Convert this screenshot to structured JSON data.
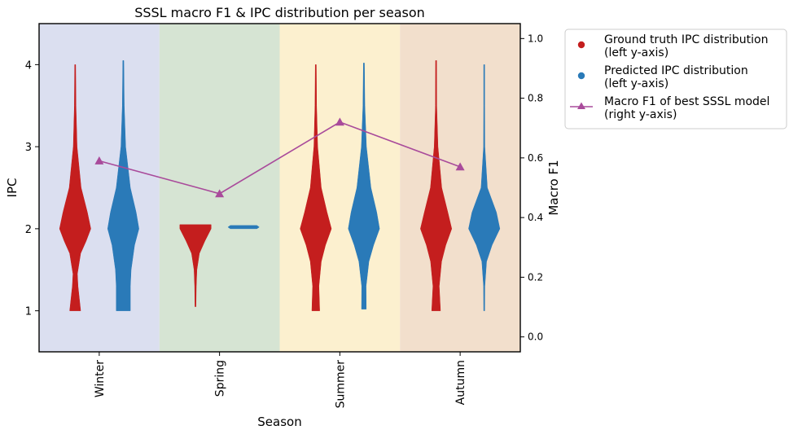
{
  "chart_data": {
    "type": "violin",
    "title": "SSSL macro F1 & IPC distribution per season",
    "xlabel": "Season",
    "ylabel": "IPC",
    "y2label": "Macro F1",
    "categories": [
      "Winter",
      "Spring",
      "Summer",
      "Autumn"
    ],
    "ylim": [
      0.5,
      4.5
    ],
    "y2lim": [
      -0.05,
      1.05
    ],
    "yticks": [
      "1",
      "2",
      "3",
      "4"
    ],
    "y2ticks": [
      "0.0",
      "0.2",
      "0.4",
      "0.6",
      "0.8",
      "1.0"
    ],
    "background_colors": [
      "#dbdff0",
      "#d6e4d3",
      "#fcf0cf",
      "#f2dfcc"
    ],
    "series": [
      {
        "name": "Ground truth IPC distribution\n(left y-axis)",
        "color": "#c41e1e",
        "axis": "left",
        "violins": [
          {
            "min": 1.0,
            "max": 4.0,
            "profile": [
              [
                1.0,
                0.35
              ],
              [
                1.3,
                0.18
              ],
              [
                1.45,
                0.14
              ],
              [
                1.7,
                0.35
              ],
              [
                1.85,
                0.7
              ],
              [
                2.0,
                1.0
              ],
              [
                2.2,
                0.78
              ],
              [
                2.5,
                0.38
              ],
              [
                3.0,
                0.12
              ],
              [
                3.5,
                0.05
              ],
              [
                4.0,
                0.02
              ]
            ]
          },
          {
            "min": 1.05,
            "max": 2.05,
            "profile": [
              [
                1.05,
                0.02
              ],
              [
                1.3,
                0.05
              ],
              [
                1.5,
                0.09
              ],
              [
                1.7,
                0.25
              ],
              [
                1.85,
                0.6
              ],
              [
                2.0,
                1.0
              ],
              [
                2.05,
                1.0
              ]
            ]
          },
          {
            "min": 1.0,
            "max": 4.0,
            "profile": [
              [
                1.0,
                0.25
              ],
              [
                1.3,
                0.2
              ],
              [
                1.6,
                0.35
              ],
              [
                1.8,
                0.62
              ],
              [
                2.0,
                1.0
              ],
              [
                2.2,
                0.72
              ],
              [
                2.5,
                0.35
              ],
              [
                3.0,
                0.12
              ],
              [
                3.5,
                0.05
              ],
              [
                4.0,
                0.02
              ]
            ]
          },
          {
            "min": 1.0,
            "max": 4.05,
            "profile": [
              [
                1.0,
                0.28
              ],
              [
                1.3,
                0.2
              ],
              [
                1.6,
                0.35
              ],
              [
                1.8,
                0.62
              ],
              [
                2.0,
                1.0
              ],
              [
                2.2,
                0.75
              ],
              [
                2.5,
                0.36
              ],
              [
                3.0,
                0.12
              ],
              [
                3.5,
                0.04
              ],
              [
                4.05,
                0.02
              ]
            ]
          }
        ]
      },
      {
        "name": "Predicted IPC distribution\n(left y-axis)",
        "color": "#2a7ab8",
        "axis": "left",
        "violins": [
          {
            "min": 1.0,
            "max": 4.05,
            "profile": [
              [
                1.0,
                0.45
              ],
              [
                1.3,
                0.45
              ],
              [
                1.5,
                0.5
              ],
              [
                1.8,
                0.72
              ],
              [
                2.0,
                1.0
              ],
              [
                2.2,
                0.82
              ],
              [
                2.5,
                0.45
              ],
              [
                3.0,
                0.15
              ],
              [
                3.5,
                0.06
              ],
              [
                4.05,
                0.03
              ]
            ]
          },
          {
            "min": 2.0,
            "max": 2.04,
            "profile": [
              [
                2.0,
                0.85
              ],
              [
                2.02,
                1.0
              ],
              [
                2.04,
                0.85
              ]
            ]
          },
          {
            "min": 1.02,
            "max": 4.02,
            "profile": [
              [
                1.02,
                0.15
              ],
              [
                1.3,
                0.14
              ],
              [
                1.6,
                0.32
              ],
              [
                1.8,
                0.62
              ],
              [
                2.0,
                1.0
              ],
              [
                2.2,
                0.82
              ],
              [
                2.5,
                0.45
              ],
              [
                3.0,
                0.16
              ],
              [
                3.5,
                0.06
              ],
              [
                4.02,
                0.02
              ]
            ]
          },
          {
            "min": 1.0,
            "max": 4.0,
            "profile": [
              [
                1.0,
                0.02
              ],
              [
                1.3,
                0.04
              ],
              [
                1.6,
                0.15
              ],
              [
                1.8,
                0.5
              ],
              [
                2.0,
                1.0
              ],
              [
                2.2,
                0.78
              ],
              [
                2.5,
                0.2
              ],
              [
                3.0,
                0.04
              ],
              [
                3.5,
                0.02
              ],
              [
                4.0,
                0.01
              ]
            ]
          }
        ]
      },
      {
        "name": "Macro F1 of best SSSL model\n(right y-axis)",
        "color": "#a94b9b",
        "axis": "right",
        "type": "line",
        "values": [
          0.59,
          0.48,
          0.72,
          0.57
        ]
      }
    ],
    "legend_position": "outside-top-right",
    "grid": false
  }
}
